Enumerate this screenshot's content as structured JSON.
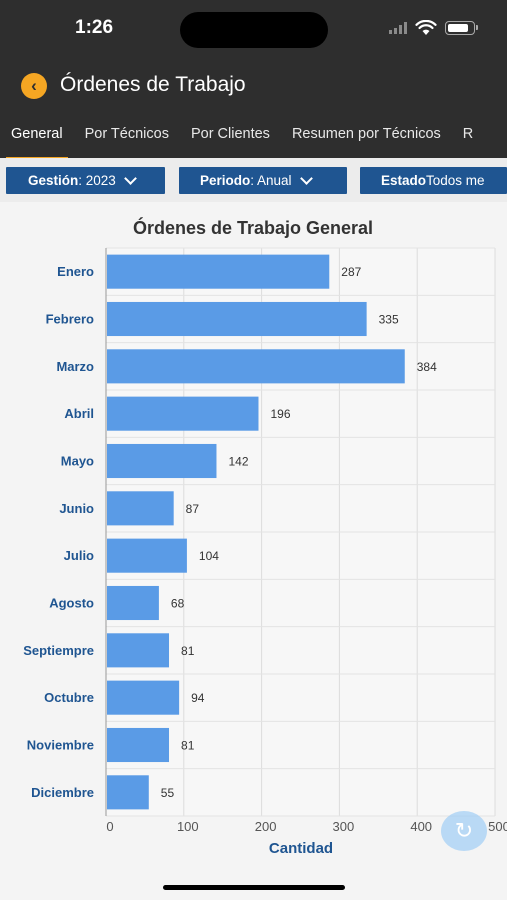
{
  "status_bar": {
    "time": "1:26"
  },
  "header": {
    "title": "Órdenes de Trabajo",
    "back_icon": "chevron-left-icon"
  },
  "tabs": [
    {
      "label": "General",
      "active": true
    },
    {
      "label": "Por Técnicos",
      "active": false
    },
    {
      "label": "Por Clientes",
      "active": false
    },
    {
      "label": "Resumen por Técnicos",
      "active": false
    },
    {
      "label": "R",
      "active": false
    }
  ],
  "filters": {
    "gestion": {
      "label": "Gestión",
      "value": ": 2023"
    },
    "periodo": {
      "label": "Periodo",
      "value": ": Anual"
    },
    "estado": {
      "label": "Estado",
      "value": " Todos me"
    }
  },
  "colors": {
    "accent": "#f5a623",
    "filter_bg": "#1f5591",
    "bar": "#5a9be6",
    "label": "#1f5591"
  },
  "chart_data": {
    "type": "bar",
    "orientation": "horizontal",
    "title": "Órdenes de Trabajo General",
    "xlabel": "Cantidad",
    "categories": [
      "Enero",
      "Febrero",
      "Marzo",
      "Abril",
      "Mayo",
      "Junio",
      "Julio",
      "Agosto",
      "Septiempre",
      "Octubre",
      "Noviembre",
      "Diciembre"
    ],
    "values": [
      287,
      335,
      384,
      196,
      142,
      87,
      104,
      68,
      81,
      94,
      81,
      55
    ],
    "xlim": [
      0,
      500
    ],
    "xticks": [
      "0",
      "100",
      "200",
      "300",
      "400",
      "500"
    ],
    "grid": true
  }
}
